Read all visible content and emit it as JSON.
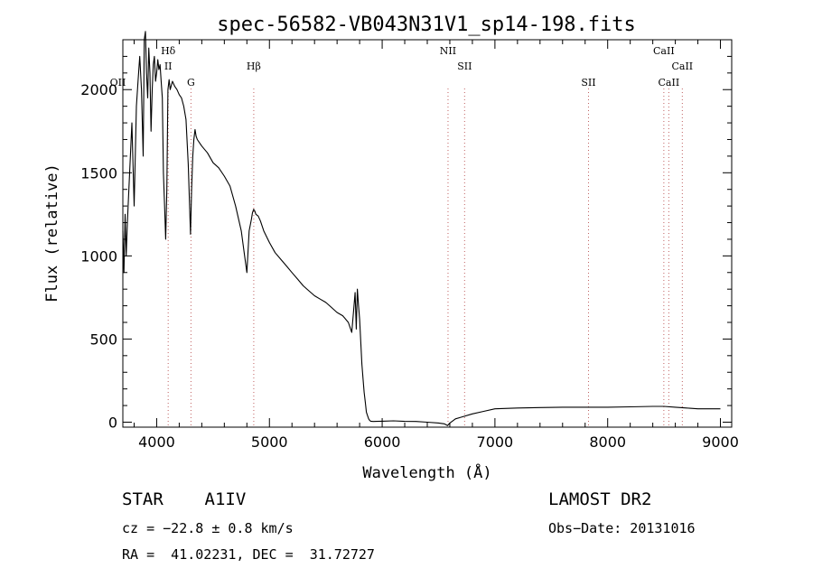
{
  "chart_data": {
    "type": "line",
    "title": "spec-56582-VB043N31V1_sp14-198.fits",
    "xlabel": "Wavelength (Å)",
    "ylabel": "Flux (relative)",
    "xlim": [
      3700,
      9100
    ],
    "ylim": [
      -30,
      2300
    ],
    "x_ticks": [
      4000,
      5000,
      6000,
      7000,
      8000,
      9000
    ],
    "y_ticks": [
      0,
      500,
      1000,
      1500,
      2000
    ],
    "grid": false,
    "legend": "none",
    "series": [
      {
        "x": [
          3700,
          3710,
          3720,
          3730,
          3740,
          3760,
          3780,
          3800,
          3820,
          3835,
          3850,
          3865,
          3880,
          3890,
          3900,
          3910,
          3920,
          3930,
          3940,
          3950,
          3960,
          3970,
          3980,
          3990,
          4000,
          4010,
          4020,
          4030,
          4040,
          4050,
          4060,
          4070,
          4080,
          4090,
          4100,
          4110,
          4120,
          4140,
          4160,
          4180,
          4200,
          4220,
          4240,
          4260,
          4280,
          4300,
          4310,
          4320,
          4330,
          4340,
          4350,
          4360,
          4380,
          4400,
          4450,
          4500,
          4550,
          4600,
          4650,
          4700,
          4750,
          4780,
          4800,
          4820,
          4840,
          4850,
          4860,
          4870,
          4880,
          4900,
          4920,
          4950,
          5000,
          5050,
          5100,
          5150,
          5200,
          5250,
          5300,
          5350,
          5400,
          5450,
          5500,
          5550,
          5600,
          5650,
          5700,
          5730,
          5750,
          5760,
          5770,
          5780,
          5790,
          5800,
          5810,
          5820,
          5830,
          5840,
          5850,
          5860,
          5870,
          5880,
          5890,
          5900,
          5910,
          5920,
          5950,
          6000,
          6100,
          6200,
          6300,
          6400,
          6500,
          6550,
          6580,
          6600,
          6650,
          6700,
          6800,
          6900,
          7000,
          7200,
          7400,
          7600,
          7800,
          8000,
          8200,
          8400,
          8500,
          8600,
          8700,
          8800,
          8900,
          9000
        ],
        "y": [
          1150,
          900,
          1250,
          1000,
          1200,
          1500,
          1800,
          1300,
          1900,
          2050,
          2200,
          2000,
          1600,
          2300,
          2350,
          2100,
          1950,
          2250,
          2100,
          1750,
          2000,
          2150,
          2200,
          2050,
          2100,
          2180,
          2120,
          2150,
          2050,
          1950,
          1500,
          1300,
          1100,
          1400,
          2000,
          2060,
          2000,
          2050,
          2020,
          2000,
          1970,
          1950,
          1900,
          1820,
          1550,
          1130,
          1400,
          1600,
          1700,
          1760,
          1720,
          1700,
          1680,
          1660,
          1620,
          1560,
          1530,
          1480,
          1420,
          1300,
          1150,
          1000,
          900,
          1150,
          1220,
          1260,
          1280,
          1270,
          1250,
          1240,
          1210,
          1150,
          1080,
          1020,
          980,
          940,
          900,
          860,
          820,
          790,
          760,
          740,
          720,
          690,
          660,
          640,
          600,
          540,
          700,
          780,
          560,
          800,
          700,
          620,
          480,
          350,
          260,
          180,
          120,
          60,
          40,
          20,
          10,
          5,
          5,
          4,
          5,
          6,
          8,
          5,
          4,
          0,
          -5,
          -10,
          -20,
          -5,
          20,
          30,
          50,
          65,
          80,
          85,
          88,
          90,
          90,
          90,
          92,
          95,
          95,
          90,
          85,
          80,
          80,
          80
        ]
      }
    ],
    "line_marks": [
      {
        "label": "OII",
        "x": 3727,
        "row": 2,
        "anchor": "end",
        "guide": false
      },
      {
        "label": "Hδ",
        "x": 4102,
        "row": 0,
        "anchor": "middle",
        "guide": true
      },
      {
        "label": "II",
        "x": 4102,
        "row": 1,
        "anchor": "middle",
        "guide": false
      },
      {
        "label": "G",
        "x": 4304,
        "row": 2,
        "anchor": "middle",
        "guide": true
      },
      {
        "label": "Hβ",
        "x": 4861,
        "row": 1,
        "anchor": "middle",
        "guide": true
      },
      {
        "label": "NII",
        "x": 6584,
        "row": 0,
        "anchor": "middle",
        "guide": true
      },
      {
        "label": "SII",
        "x": 6731,
        "row": 1,
        "anchor": "middle",
        "guide": true
      },
      {
        "label": "SII",
        "x": 7830,
        "row": 2,
        "anchor": "middle",
        "guide": true
      },
      {
        "label": "CaII",
        "x": 8498,
        "row": 0,
        "anchor": "middle",
        "guide": true
      },
      {
        "label": "CaII",
        "x": 8542,
        "row": 2,
        "anchor": "middle",
        "guide": true
      },
      {
        "label": "CaII",
        "x": 8662,
        "row": 1,
        "anchor": "middle",
        "guide": true
      }
    ]
  },
  "footer": {
    "object": "STAR    A1IV",
    "cz": "cz = −22.8 ± 0.8 km/s",
    "coords": "RA =  41.02231, DEC =  31.72727",
    "survey": "LAMOST DR2",
    "obs_date": "Obs−Date: 20131016"
  }
}
